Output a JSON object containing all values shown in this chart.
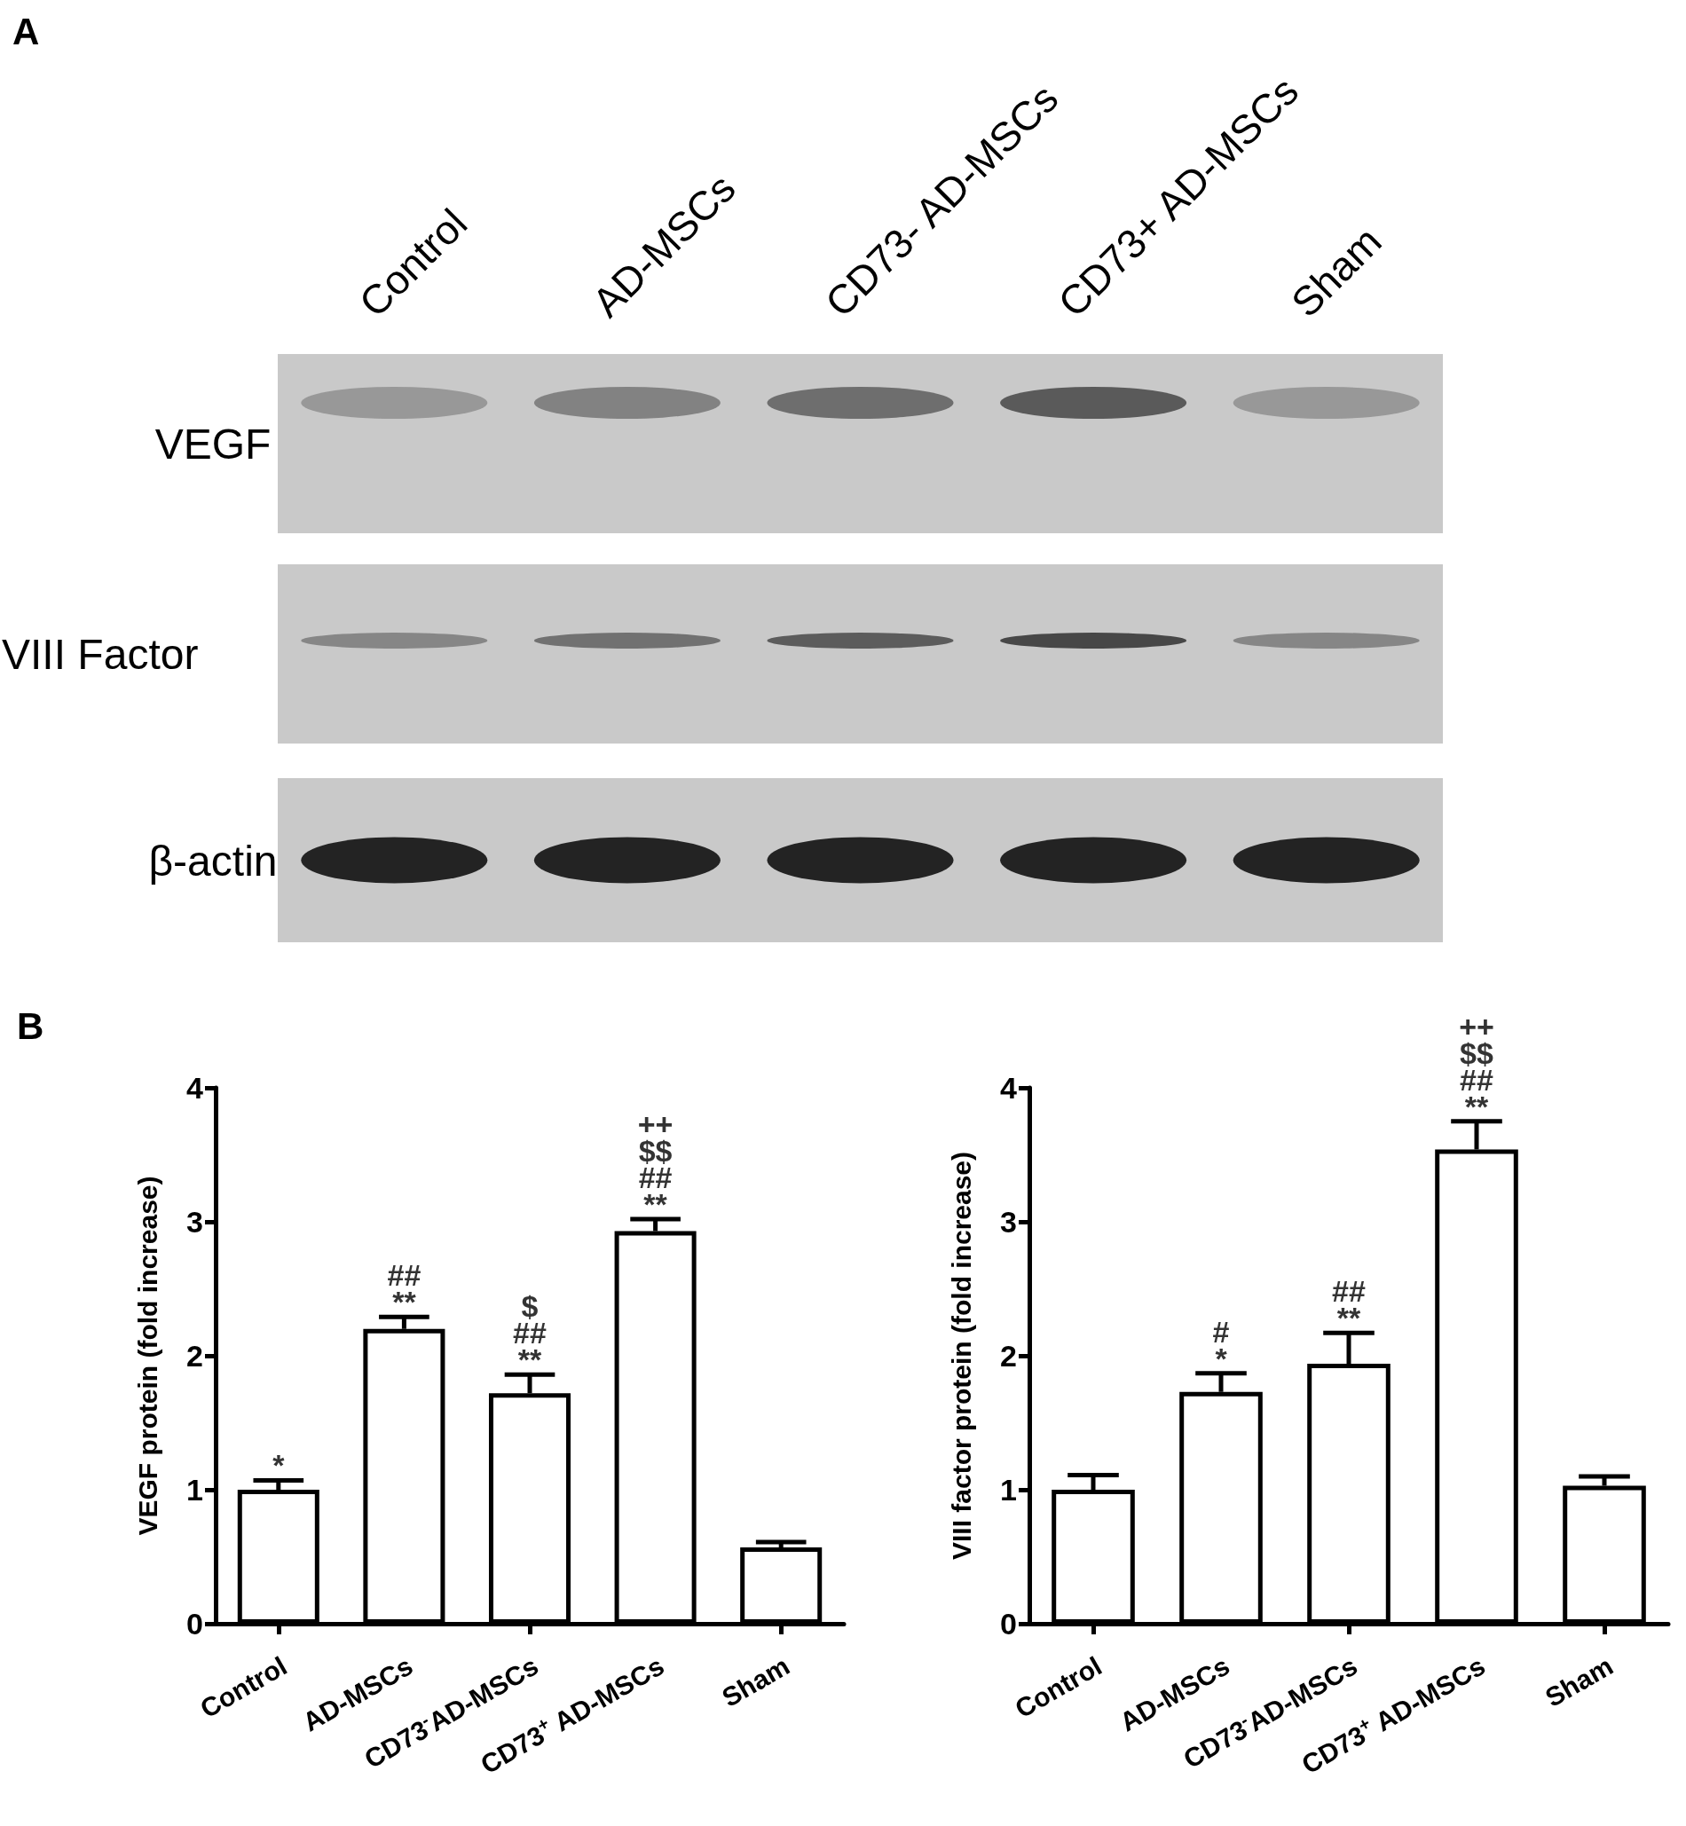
{
  "chart_data": [
    {
      "type": "other",
      "title": "A",
      "categories": [
        "Control",
        "AD-MSCs",
        "CD73- AD-MSCs",
        "CD73+ AD-MSCs",
        "Sham"
      ],
      "y_categories": [
        "VEGF",
        "VIII Factor",
        "β-actin"
      ]
    },
    {
      "type": "bar",
      "title": "B",
      "ylabel": "VEGF protein (fold increase)",
      "categories": [
        "Control",
        "AD-MSCs",
        "CD73$^{-}$AD-MSCs",
        "CD73$^{+}$ AD-MSCs",
        "Sham"
      ],
      "values": [
        1.0,
        2.2,
        1.72,
        2.93,
        0.57
      ],
      "color": "#ffffff",
      "errors": [
        [
          1.0,
          1.07
        ],
        [
          2.2,
          2.29
        ],
        [
          1.72,
          1.86
        ],
        [
          2.93,
          3.02
        ],
        [
          0.57,
          0.61
        ]
      ],
      "ylim": [
        0,
        4
      ],
      "yticks": [
        0,
        1,
        2,
        3,
        4
      ],
      "annotations": [
        {
          "text": "*",
          "x": "Control",
          "y": 1.07
        },
        {
          "text": "##\n**",
          "x": "AD-MSCs",
          "y": 2.29
        },
        {
          "text": "$\n##\n**",
          "x": "CD73$^{-}$AD-MSCs",
          "y": 1.86
        },
        {
          "text": "++\n$$\n##\n**",
          "x": "CD73$^{+}$ AD-MSCs",
          "y": 3.02
        }
      ]
    },
    {
      "type": "bar",
      "ylabel": "VIII factor protein (fold increase)",
      "categories": [
        "Control",
        "AD-MSCs",
        "CD73$^{-}$AD-MSCs",
        "CD73$^{+}$ AD-MSCs",
        "Sham"
      ],
      "values": [
        1.0,
        1.73,
        1.94,
        3.54,
        1.03
      ],
      "color": "#ffffff",
      "errors": [
        [
          1.0,
          1.11
        ],
        [
          1.73,
          1.87
        ],
        [
          1.94,
          2.17
        ],
        [
          3.54,
          3.75
        ],
        [
          1.03,
          1.1
        ]
      ],
      "ylim": [
        0,
        4
      ],
      "yticks": [
        0,
        1,
        2,
        3,
        4
      ],
      "annotations": [
        {
          "text": "#\n*",
          "x": "AD-MSCs",
          "y": 1.87
        },
        {
          "text": "##\n**",
          "x": "CD73$^{-}$AD-MSCs",
          "y": 2.17
        },
        {
          "text": "++\n$$\n##\n**",
          "x": "CD73$^{+}$ AD-MSCs",
          "y": 3.75
        }
      ]
    }
  ]
}
